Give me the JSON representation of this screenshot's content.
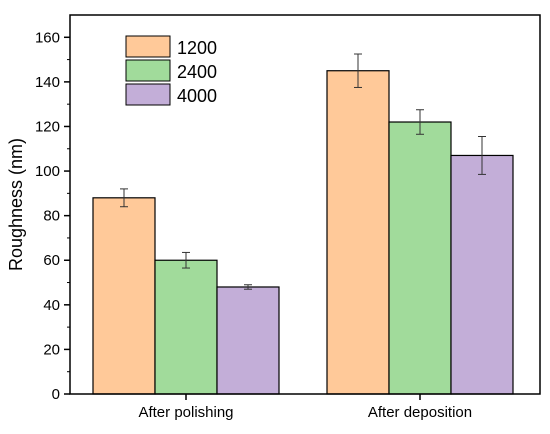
{
  "chart_data": {
    "type": "bar",
    "xlabel": "",
    "ylabel": "Roughness (nm)",
    "ylim": [
      0,
      170
    ],
    "yticks": [
      0,
      20,
      40,
      60,
      80,
      100,
      120,
      140,
      160
    ],
    "categories": [
      "After polishing",
      "After deposition"
    ],
    "series": [
      {
        "name": "1200",
        "color": "#FFC999",
        "values": [
          88,
          145
        ],
        "errors": [
          4,
          7.5
        ]
      },
      {
        "name": "2400",
        "color": "#A1DB9B",
        "values": [
          60,
          122
        ],
        "errors": [
          3.5,
          5.5
        ]
      },
      {
        "name": "4000",
        "color": "#C3AED8",
        "values": [
          48,
          107
        ],
        "errors": [
          1,
          8.5
        ]
      }
    ],
    "legend": {
      "position": "top-left"
    },
    "grid": false
  }
}
